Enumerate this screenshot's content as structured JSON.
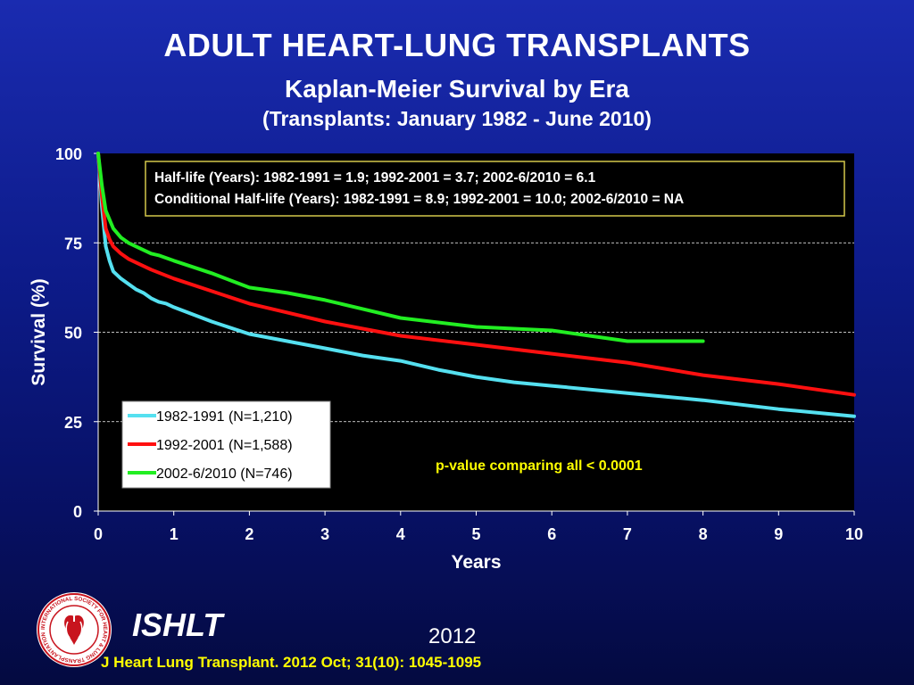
{
  "header": {
    "title": "ADULT HEART-LUNG TRANSPLANTS",
    "subtitle": "Kaplan-Meier Survival by Era",
    "subtitle2": "(Transplants: January 1982 - June 2010)"
  },
  "chart_data": {
    "type": "line",
    "xlabel": "Years",
    "ylabel": "Survival (%)",
    "xlim": [
      0,
      10
    ],
    "ylim": [
      0,
      100
    ],
    "x_ticks": [
      "0",
      "1",
      "2",
      "3",
      "4",
      "5",
      "6",
      "7",
      "8",
      "9",
      "10"
    ],
    "y_ticks": [
      "0",
      "25",
      "50",
      "75",
      "100"
    ],
    "grid": "horizontal dashed at 25, 50, 75",
    "legend_position": "lower-left",
    "series": [
      {
        "name": "1982-1991 (N=1,210)",
        "color": "#55e0f0",
        "x": [
          0,
          0.05,
          0.1,
          0.15,
          0.2,
          0.3,
          0.4,
          0.5,
          0.6,
          0.7,
          0.8,
          0.9,
          1,
          1.5,
          2,
          2.5,
          3,
          3.5,
          4,
          4.5,
          5,
          5.5,
          6,
          7,
          8,
          9,
          10
        ],
        "y": [
          100,
          85,
          74,
          70,
          67,
          65,
          63.5,
          62,
          61,
          59.5,
          58.5,
          58,
          57,
          53,
          49.5,
          47.5,
          45.5,
          43.5,
          42,
          39.5,
          37.5,
          36,
          35,
          33,
          31,
          28.5,
          26.5
        ]
      },
      {
        "name": "1992-2001 (N=1,588)",
        "color": "#ff1010",
        "x": [
          0,
          0.05,
          0.1,
          0.15,
          0.2,
          0.3,
          0.4,
          0.5,
          0.7,
          1,
          1.5,
          2,
          2.5,
          3,
          3.5,
          4,
          5,
          6,
          7,
          8,
          9,
          10
        ],
        "y": [
          100,
          88,
          79,
          76,
          74,
          72,
          70.5,
          69.5,
          67.5,
          65,
          61.5,
          58,
          55.5,
          53,
          51,
          49,
          46.5,
          44,
          41.5,
          38,
          35.5,
          32.5
        ]
      },
      {
        "name": "2002-6/2010 (N=746)",
        "color": "#22ee22",
        "x": [
          0,
          0.05,
          0.1,
          0.15,
          0.2,
          0.3,
          0.4,
          0.5,
          0.6,
          0.7,
          0.8,
          1,
          1.5,
          2,
          2.5,
          3,
          3.5,
          4,
          5,
          6,
          6.5,
          7,
          7.5,
          8
        ],
        "y": [
          100,
          91,
          84,
          81.5,
          79,
          76.5,
          75,
          74,
          73,
          72,
          71.5,
          70,
          66.5,
          62.5,
          61,
          59,
          56.5,
          54,
          51.5,
          50.5,
          49,
          47.5,
          47.5,
          47.5
        ]
      }
    ],
    "annotations": {
      "halflife_line1": "Half-life (Years): 1982-1991 = 1.9; 1992-2001 = 3.7; 2002-6/2010 = 6.1",
      "halflife_line2": "Conditional Half-life (Years): 1982-1991 = 8.9; 1992-2001 = 10.0; 2002-6/2010 = NA",
      "pvalue": "p-value comparing all < 0.0001"
    },
    "colors": {
      "plot_background": "#000000",
      "annotation_box_border": "#d4c84a",
      "legend_background": "#ffffff",
      "pvalue_text": "#ffff00"
    }
  },
  "footer": {
    "brand": "ISHLT",
    "year": "2012",
    "citation": "J Heart Lung Transplant.  2012 Oct; 31(10): 1045-1095",
    "logo_icon": "ishlt-seal-icon",
    "logo_text": "INTERNATIONAL SOCIETY FOR HEART & LUNG TRANSPLANTATION"
  }
}
